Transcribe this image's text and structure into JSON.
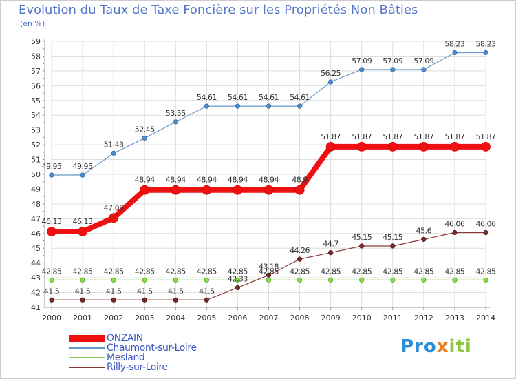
{
  "header": {
    "title": "Evolution du Taux de Taxe Foncière sur les Propriétés Non Bâties",
    "unit": "(en %)"
  },
  "logo": {
    "text": "Proxiti"
  },
  "colors": {
    "title": "#5577cc",
    "grid": "#dddddd",
    "axis": "#999999"
  },
  "chart_data": {
    "type": "line",
    "title": "Evolution du Taux de Taxe Foncière sur les Propriétés Non Bâties",
    "ylabel": "(en %)",
    "xlabel": "",
    "ylim": [
      41,
      59
    ],
    "yticks": [
      41,
      42,
      43,
      44,
      45,
      46,
      47,
      48,
      49,
      50,
      51,
      52,
      53,
      54,
      55,
      56,
      57,
      58,
      59
    ],
    "grid": true,
    "legend_position": "bottom-left",
    "categories": [
      "2000",
      "2001",
      "2002",
      "2003",
      "2004",
      "2005",
      "2006",
      "2007",
      "2008",
      "2009",
      "2010",
      "2011",
      "2012",
      "2013",
      "2014"
    ],
    "series": [
      {
        "name": "ONZAIN",
        "color": "#ee1111",
        "values": [
          46.13,
          46.13,
          47.05,
          48.94,
          48.94,
          48.94,
          48.94,
          48.94,
          48.94,
          51.87,
          51.87,
          51.87,
          51.87,
          51.87,
          51.87
        ],
        "labels": [
          "46.13",
          "46.13",
          "47.05",
          "48.94",
          "48.94",
          "48.94",
          "48.94",
          "48.94",
          "48.9",
          "51.87",
          "51.87",
          "51.87",
          "51.87",
          "51.87",
          "51.87"
        ]
      },
      {
        "name": "Chaumont-sur-Loire",
        "color": "#6699cc",
        "values": [
          49.95,
          49.95,
          51.43,
          52.45,
          53.55,
          54.61,
          54.61,
          54.61,
          54.61,
          56.25,
          57.09,
          57.09,
          57.09,
          58.23,
          58.23
        ],
        "labels": [
          "49.95",
          "49.95",
          "51.43",
          "52.45",
          "53.55",
          "54.61",
          "54.61",
          "54.61",
          "54.61",
          "56.25",
          "57.09",
          "57.09",
          "57.09",
          "58.23",
          "58.23"
        ]
      },
      {
        "name": "Mesland",
        "color": "#88cc55",
        "values": [
          42.85,
          42.85,
          42.85,
          42.85,
          42.85,
          42.85,
          42.85,
          42.85,
          42.85,
          42.85,
          42.85,
          42.85,
          42.85,
          42.85,
          42.85
        ],
        "labels": [
          "42.85",
          "42.85",
          "42.85",
          "42.85",
          "42.85",
          "42.85",
          "42.85",
          "42.85",
          "42.85",
          "42.85",
          "42.85",
          "42.85",
          "42.85",
          "42.85",
          "42.85"
        ]
      },
      {
        "name": "Rilly-sur-Loire",
        "color": "#8b3a3a",
        "values": [
          41.5,
          41.5,
          41.5,
          41.5,
          41.5,
          41.5,
          42.33,
          43.18,
          44.26,
          44.7,
          45.15,
          45.15,
          45.6,
          46.06,
          46.06
        ],
        "labels": [
          "41.5",
          "41.5",
          "41.5",
          "41.5",
          "41.5",
          "41.5",
          "42.33",
          "43.18",
          "44.26",
          "44.7",
          "45.15",
          "45.15",
          "45.6",
          "46.06",
          "46.06"
        ]
      }
    ]
  }
}
